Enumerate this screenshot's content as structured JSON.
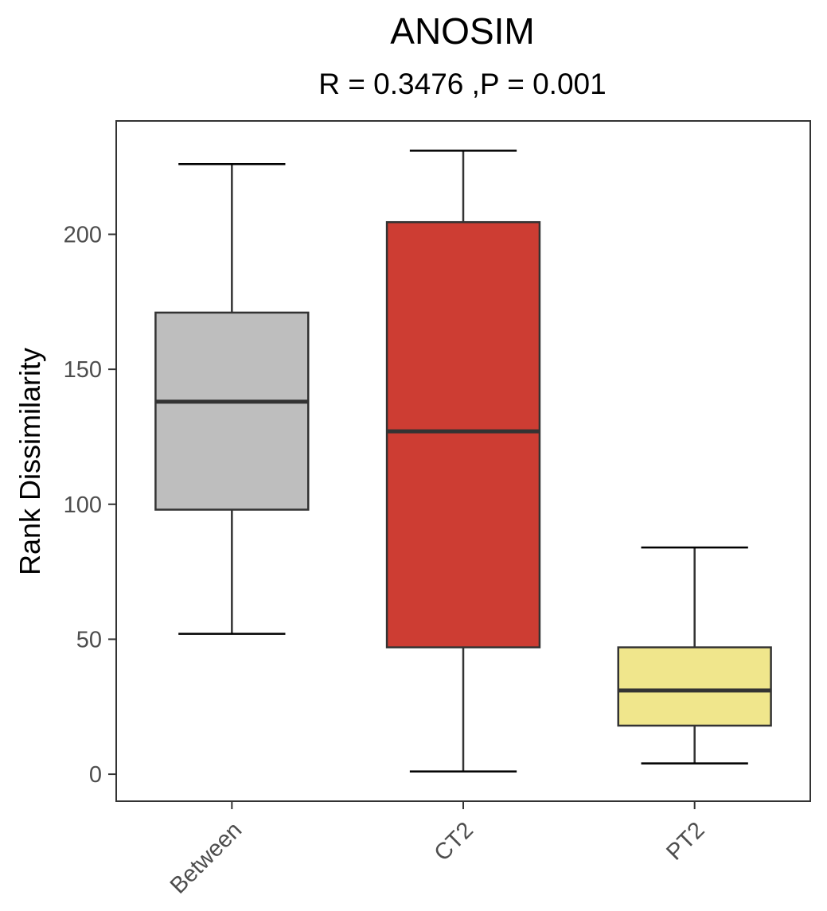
{
  "chart_data": {
    "type": "box",
    "title": "ANOSIM",
    "subtitle": "R = 0.3476 ,P = 0.001",
    "xlabel": "",
    "ylabel": "Rank Dissimilarity",
    "ylim": [
      -10,
      242
    ],
    "yticks": [
      0,
      50,
      100,
      150,
      200
    ],
    "categories": [
      "Between",
      "CT2",
      "PT2"
    ],
    "boxes": [
      {
        "name": "Between",
        "whisker_low": 52,
        "q1": 98,
        "median": 138,
        "q3": 171,
        "whisker_high": 226,
        "color": "#BEBEBE"
      },
      {
        "name": "CT2",
        "whisker_low": 1,
        "q1": 47,
        "median": 127,
        "q3": 204.5,
        "whisker_high": 231,
        "color": "#CD3D33"
      },
      {
        "name": "PT2",
        "whisker_low": 4,
        "q1": 18,
        "median": 31,
        "q3": 47,
        "whisker_high": 84,
        "color": "#F0E68C"
      }
    ],
    "grid": false,
    "legend": "none"
  }
}
